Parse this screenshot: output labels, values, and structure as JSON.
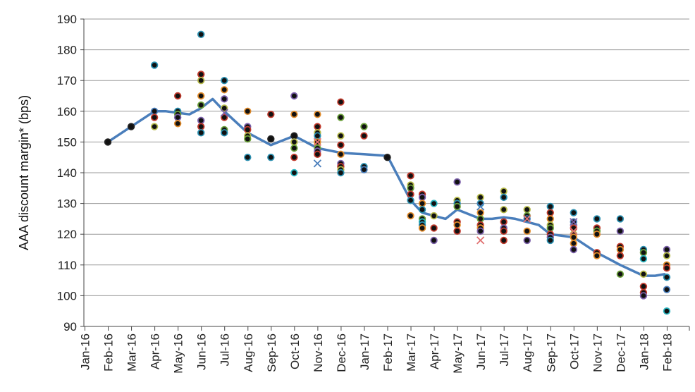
{
  "chart_data": {
    "type": "scatter",
    "ylabel": "AAA discount margin* (bps)",
    "xlabel": "",
    "ylim": [
      90,
      190
    ],
    "y_ticks": [
      90,
      100,
      110,
      120,
      130,
      140,
      150,
      160,
      170,
      180,
      190
    ],
    "grid": true,
    "x_categories": [
      "Jan-16",
      "Feb-16",
      "Mar-16",
      "Apr-16",
      "May-16",
      "Jun-16",
      "Jul-16",
      "Aug-16",
      "Sep-16",
      "Oct-16",
      "Nov-16",
      "Dec-16",
      "Jan-17",
      "Feb-17",
      "Mar-17",
      "Apr-17",
      "May-17",
      "Jun-17",
      "Jul-17",
      "Aug-17",
      "Sep-17",
      "Oct-17",
      "Nov-17",
      "Dec-17",
      "Jan-18",
      "Feb-18"
    ],
    "line_color": "#4a7ebb",
    "line": {
      "x": [
        1,
        2,
        3,
        3.5,
        4.5,
        5,
        5.5,
        6,
        7,
        8,
        9,
        10,
        11,
        12,
        13,
        14,
        14.5,
        15.5,
        16,
        17,
        17.5,
        18,
        18.5,
        19,
        19.5,
        20,
        21,
        22,
        22.5,
        23,
        24,
        24.5,
        24.9
      ],
      "y": [
        150,
        155,
        160,
        160,
        159,
        161,
        164,
        160,
        153,
        149,
        152,
        148,
        146.5,
        146,
        145.5,
        131,
        127,
        125,
        128,
        125,
        125,
        125.5,
        125,
        124,
        123,
        120,
        119,
        114,
        112,
        110,
        106.5,
        106.5,
        107
      ]
    },
    "points": [
      {
        "x": 1,
        "y": 150,
        "c": "#222222"
      },
      {
        "x": 2,
        "y": 155,
        "c": "#222222"
      },
      {
        "x": 3,
        "y": 175,
        "c": "#2a8fb0"
      },
      {
        "x": 3,
        "y": 160,
        "c": "#4a7ebb"
      },
      {
        "x": 3,
        "y": 158,
        "c": "#c0392b"
      },
      {
        "x": 3,
        "y": 155,
        "c": "#b5b94a"
      },
      {
        "x": 4,
        "y": 165,
        "c": "#c0392b"
      },
      {
        "x": 4,
        "y": 160,
        "c": "#2a8fb0"
      },
      {
        "x": 4,
        "y": 159,
        "c": "#6a9f3a"
      },
      {
        "x": 4,
        "y": 158,
        "c": "#7a5fa8"
      },
      {
        "x": 4,
        "y": 156,
        "c": "#e08a2a"
      },
      {
        "x": 5,
        "y": 185,
        "c": "#2a8fb0"
      },
      {
        "x": 5,
        "y": 172,
        "c": "#c0392b"
      },
      {
        "x": 5,
        "y": 170,
        "c": "#b5b94a"
      },
      {
        "x": 5,
        "y": 165,
        "c": "#e08a2a"
      },
      {
        "x": 5,
        "y": 162,
        "c": "#6a9f3a"
      },
      {
        "x": 5,
        "y": 157,
        "c": "#7a5fa8"
      },
      {
        "x": 5,
        "y": 155,
        "c": "#c0392b"
      },
      {
        "x": 5,
        "y": 153,
        "c": "#2a8fb0"
      },
      {
        "x": 6,
        "y": 170,
        "c": "#2a8fb0"
      },
      {
        "x": 6,
        "y": 167,
        "c": "#e08a2a"
      },
      {
        "x": 6,
        "y": 164,
        "c": "#7a5fa8"
      },
      {
        "x": 6,
        "y": 161,
        "c": "#b5b94a"
      },
      {
        "x": 6,
        "y": 158,
        "c": "#c0392b"
      },
      {
        "x": 6,
        "y": 154,
        "c": "#6a9f3a"
      },
      {
        "x": 6,
        "y": 153,
        "c": "#2a8fb0"
      },
      {
        "x": 7,
        "y": 160,
        "c": "#e08a2a"
      },
      {
        "x": 7,
        "y": 155,
        "c": "#7a5fa8"
      },
      {
        "x": 7,
        "y": 154,
        "c": "#c0392b"
      },
      {
        "x": 7,
        "y": 152,
        "c": "#b5b94a"
      },
      {
        "x": 7,
        "y": 151,
        "c": "#6a9f3a"
      },
      {
        "x": 7,
        "y": 145,
        "c": "#2a8fb0"
      },
      {
        "x": 8,
        "y": 159,
        "c": "#c0392b"
      },
      {
        "x": 8,
        "y": 151,
        "c": "#222222"
      },
      {
        "x": 8,
        "y": 145,
        "c": "#2a8fb0"
      },
      {
        "x": 9,
        "y": 165,
        "c": "#7a5fa8"
      },
      {
        "x": 9,
        "y": 159,
        "c": "#e08a2a"
      },
      {
        "x": 9,
        "y": 152,
        "c": "#222222"
      },
      {
        "x": 9,
        "y": 150,
        "c": "#b5b94a"
      },
      {
        "x": 9,
        "y": 148,
        "c": "#6a9f3a"
      },
      {
        "x": 9,
        "y": 145,
        "c": "#c0392b"
      },
      {
        "x": 9,
        "y": 140,
        "c": "#2ab5c0"
      },
      {
        "x": 10,
        "y": 159,
        "c": "#e08a2a"
      },
      {
        "x": 10,
        "y": 155,
        "c": "#c0392b"
      },
      {
        "x": 10,
        "y": 153,
        "c": "#b5b94a"
      },
      {
        "x": 10,
        "y": 152,
        "c": "#2a8fb0"
      },
      {
        "x": 10,
        "y": 150,
        "c": "#e08a2a"
      },
      {
        "x": 10,
        "y": 148,
        "c": "#6a9f3a"
      },
      {
        "x": 10,
        "y": 147,
        "c": "#7a5fa8"
      },
      {
        "x": 10,
        "y": 146,
        "c": "#c0392b"
      },
      {
        "x": 11,
        "y": 163,
        "c": "#c0392b"
      },
      {
        "x": 11,
        "y": 158,
        "c": "#6a9f3a"
      },
      {
        "x": 11,
        "y": 152,
        "c": "#b5b94a"
      },
      {
        "x": 11,
        "y": 149,
        "c": "#c0392b"
      },
      {
        "x": 11,
        "y": 146,
        "c": "#e08a2a"
      },
      {
        "x": 11,
        "y": 143,
        "c": "#7a5fa8"
      },
      {
        "x": 11,
        "y": 142,
        "c": "#c0392b"
      },
      {
        "x": 11,
        "y": 141,
        "c": "#b5b94a"
      },
      {
        "x": 11,
        "y": 140,
        "c": "#2a8fb0"
      },
      {
        "x": 12,
        "y": 155,
        "c": "#6a9f3a"
      },
      {
        "x": 12,
        "y": 152,
        "c": "#c0392b"
      },
      {
        "x": 12,
        "y": 142,
        "c": "#2a8fb0"
      },
      {
        "x": 12,
        "y": 141,
        "c": "#4a7ebb"
      },
      {
        "x": 13,
        "y": 145,
        "c": "#222222"
      },
      {
        "x": 14,
        "y": 139,
        "c": "#c0392b"
      },
      {
        "x": 14,
        "y": 136,
        "c": "#b5b94a"
      },
      {
        "x": 14,
        "y": 135,
        "c": "#6a9f3a"
      },
      {
        "x": 14,
        "y": 133,
        "c": "#c0392b"
      },
      {
        "x": 14,
        "y": 131,
        "c": "#2a8fb0"
      },
      {
        "x": 14,
        "y": 126,
        "c": "#e08a2a"
      },
      {
        "x": 14.5,
        "y": 133,
        "c": "#c0392b"
      },
      {
        "x": 14.5,
        "y": 132,
        "c": "#7a5fa8"
      },
      {
        "x": 14.5,
        "y": 130,
        "c": "#e08a2a"
      },
      {
        "x": 14.5,
        "y": 128,
        "c": "#2a8fb0"
      },
      {
        "x": 14.5,
        "y": 125,
        "c": "#6a9f3a"
      },
      {
        "x": 14.5,
        "y": 124,
        "c": "#2ab5c0"
      },
      {
        "x": 14.5,
        "y": 123,
        "c": "#2a8fb0"
      },
      {
        "x": 14.5,
        "y": 122,
        "c": "#e08a2a"
      },
      {
        "x": 15,
        "y": 130,
        "c": "#2ab5c0"
      },
      {
        "x": 15,
        "y": 126,
        "c": "#b5b94a"
      },
      {
        "x": 15,
        "y": 122,
        "c": "#c0392b"
      },
      {
        "x": 15,
        "y": 118,
        "c": "#7a5fa8"
      },
      {
        "x": 16,
        "y": 137,
        "c": "#7a5fa8"
      },
      {
        "x": 16,
        "y": 131,
        "c": "#b5b94a"
      },
      {
        "x": 16,
        "y": 130,
        "c": "#2a8fb0"
      },
      {
        "x": 16,
        "y": 129,
        "c": "#6a9f3a"
      },
      {
        "x": 16,
        "y": 124,
        "c": "#c0392b"
      },
      {
        "x": 16,
        "y": 123,
        "c": "#e08a2a"
      },
      {
        "x": 16,
        "y": 121,
        "c": "#c0392b"
      },
      {
        "x": 17,
        "y": 132,
        "c": "#b5b94a"
      },
      {
        "x": 17,
        "y": 130,
        "c": "#2a8fb0"
      },
      {
        "x": 17,
        "y": 127,
        "c": "#e08a2a"
      },
      {
        "x": 17,
        "y": 125,
        "c": "#6a9f3a"
      },
      {
        "x": 17,
        "y": 123,
        "c": "#c0392b"
      },
      {
        "x": 17,
        "y": 122,
        "c": "#e08a2a"
      },
      {
        "x": 17,
        "y": 121,
        "c": "#7a5fa8"
      },
      {
        "x": 18,
        "y": 134,
        "c": "#b5b94a"
      },
      {
        "x": 18,
        "y": 132,
        "c": "#2a8fb0"
      },
      {
        "x": 18,
        "y": 128,
        "c": "#b5b94a"
      },
      {
        "x": 18,
        "y": 124,
        "c": "#c0392b"
      },
      {
        "x": 18,
        "y": 122,
        "c": "#7a5fa8"
      },
      {
        "x": 18,
        "y": 121,
        "c": "#c0392b"
      },
      {
        "x": 18,
        "y": 118,
        "c": "#c0392b"
      },
      {
        "x": 19,
        "y": 128,
        "c": "#b5b94a"
      },
      {
        "x": 19,
        "y": 126,
        "c": "#6a9f3a"
      },
      {
        "x": 19,
        "y": 125,
        "c": "#4a7ebb"
      },
      {
        "x": 19,
        "y": 121,
        "c": "#e08a2a"
      },
      {
        "x": 19,
        "y": 118,
        "c": "#7a5fa8"
      },
      {
        "x": 20,
        "y": 129,
        "c": "#2a8fb0"
      },
      {
        "x": 20,
        "y": 127,
        "c": "#c0392b"
      },
      {
        "x": 20,
        "y": 125,
        "c": "#e08a2a"
      },
      {
        "x": 20,
        "y": 123,
        "c": "#b5b94a"
      },
      {
        "x": 20,
        "y": 122,
        "c": "#6a9f3a"
      },
      {
        "x": 20,
        "y": 120,
        "c": "#c0392b"
      },
      {
        "x": 20,
        "y": 119,
        "c": "#7a5fa8"
      },
      {
        "x": 20,
        "y": 118,
        "c": "#2a8fb0"
      },
      {
        "x": 21,
        "y": 127,
        "c": "#2a8fb0"
      },
      {
        "x": 21,
        "y": 124,
        "c": "#4a7ebb"
      },
      {
        "x": 21,
        "y": 122,
        "c": "#c0392b"
      },
      {
        "x": 21,
        "y": 120,
        "c": "#b5b94a"
      },
      {
        "x": 21,
        "y": 119,
        "c": "#e08a2a"
      },
      {
        "x": 21,
        "y": 117,
        "c": "#e08a2a"
      },
      {
        "x": 21,
        "y": 115,
        "c": "#7a5fa8"
      },
      {
        "x": 22,
        "y": 125,
        "c": "#2a8fb0"
      },
      {
        "x": 22,
        "y": 122,
        "c": "#c0392b"
      },
      {
        "x": 22,
        "y": 121,
        "c": "#6a9f3a"
      },
      {
        "x": 22,
        "y": 120,
        "c": "#e08a2a"
      },
      {
        "x": 22,
        "y": 114,
        "c": "#c0392b"
      },
      {
        "x": 22,
        "y": 113,
        "c": "#e08a2a"
      },
      {
        "x": 23,
        "y": 125,
        "c": "#2a8fb0"
      },
      {
        "x": 23,
        "y": 121,
        "c": "#7a5fa8"
      },
      {
        "x": 23,
        "y": 116,
        "c": "#c0392b"
      },
      {
        "x": 23,
        "y": 115,
        "c": "#e08a2a"
      },
      {
        "x": 23,
        "y": 113,
        "c": "#c0392b"
      },
      {
        "x": 23,
        "y": 107,
        "c": "#6a9f3a"
      },
      {
        "x": 24,
        "y": 115,
        "c": "#2a8fb0"
      },
      {
        "x": 24,
        "y": 114,
        "c": "#6a9f3a"
      },
      {
        "x": 24,
        "y": 112,
        "c": "#2ab5c0"
      },
      {
        "x": 24,
        "y": 107,
        "c": "#b5b94a"
      },
      {
        "x": 24,
        "y": 103,
        "c": "#c0392b"
      },
      {
        "x": 24,
        "y": 101,
        "c": "#c0392b"
      },
      {
        "x": 24,
        "y": 100,
        "c": "#7a5fa8"
      },
      {
        "x": 25,
        "y": 115,
        "c": "#7a5fa8"
      },
      {
        "x": 25,
        "y": 113,
        "c": "#b5b94a"
      },
      {
        "x": 25,
        "y": 110,
        "c": "#e08a2a"
      },
      {
        "x": 25,
        "y": 109,
        "c": "#c0392b"
      },
      {
        "x": 25,
        "y": 106,
        "c": "#2a8fb0"
      },
      {
        "x": 25,
        "y": 102,
        "c": "#4a7ebb"
      },
      {
        "x": 25,
        "y": 95,
        "c": "#2ab5c0"
      }
    ],
    "cross_markers": [
      {
        "x": 6,
        "y": 159.5,
        "c": "#7a5fa8"
      },
      {
        "x": 10,
        "y": 150,
        "c": "#e07070"
      },
      {
        "x": 10,
        "y": 143,
        "c": "#4a7ebb"
      },
      {
        "x": 17,
        "y": 118,
        "c": "#e07070"
      },
      {
        "x": 17,
        "y": 129,
        "c": "#4a7ebb"
      },
      {
        "x": 19,
        "y": 125,
        "c": "#e07070"
      },
      {
        "x": 21,
        "y": 121,
        "c": "#e07070"
      },
      {
        "x": 21,
        "y": 124,
        "c": "#7a5fa8"
      }
    ]
  }
}
